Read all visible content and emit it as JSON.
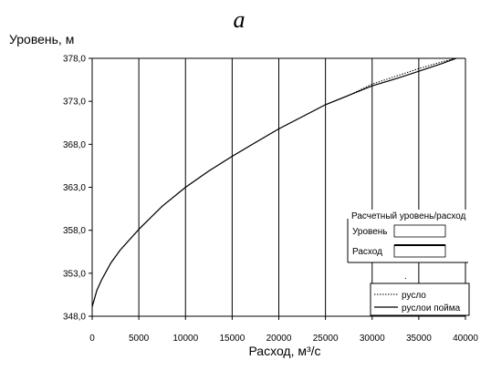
{
  "chart_data": {
    "type": "line",
    "title": "а",
    "ylabel": "Уровень, м",
    "xlabel": "Расход, м³/с",
    "xlim": [
      0,
      40000
    ],
    "ylim": [
      348.0,
      378.0
    ],
    "x_ticks": [
      0,
      5000,
      10000,
      15000,
      20000,
      25000,
      30000,
      35000,
      40000
    ],
    "y_ticks": [
      "348,0",
      "353,0",
      "358,0",
      "363,0",
      "368,0",
      "373,0",
      "378,0"
    ],
    "grid": {
      "vertical": true,
      "horizontal": false
    },
    "series": [
      {
        "name": "русло",
        "style": "dotted",
        "x": [
          0,
          500,
          1000,
          2000,
          3000,
          5000,
          7500,
          10000,
          12500,
          15000,
          17500,
          20000,
          22500,
          25000,
          27500,
          30000,
          32500,
          35000,
          37500,
          39000
        ],
        "y": [
          349.1,
          351.0,
          352.2,
          354.2,
          355.7,
          358.1,
          360.8,
          363.0,
          364.9,
          366.6,
          368.2,
          369.8,
          371.2,
          372.6,
          373.7,
          375.0,
          375.9,
          376.8,
          377.6,
          378.0
        ]
      },
      {
        "name": "руслои пойма",
        "style": "solid",
        "x": [
          0,
          500,
          1000,
          2000,
          3000,
          5000,
          7500,
          10000,
          12500,
          15000,
          17500,
          20000,
          22500,
          25000,
          27500,
          30000,
          32500,
          35000,
          37500,
          39000
        ],
        "y": [
          349.1,
          351.0,
          352.2,
          354.2,
          355.7,
          358.1,
          360.8,
          363.0,
          364.9,
          366.6,
          368.2,
          369.8,
          371.2,
          372.6,
          373.7,
          374.8,
          375.6,
          376.5,
          377.4,
          378.0
        ]
      }
    ],
    "legend": {
      "placement": "bottom-right",
      "entries": [
        "русло",
        "руслои пойма"
      ]
    },
    "calc_box": {
      "title": "Расчетный уровень/расход",
      "level_label": "Уровень",
      "flow_label": "Расход",
      "dot": "."
    }
  }
}
